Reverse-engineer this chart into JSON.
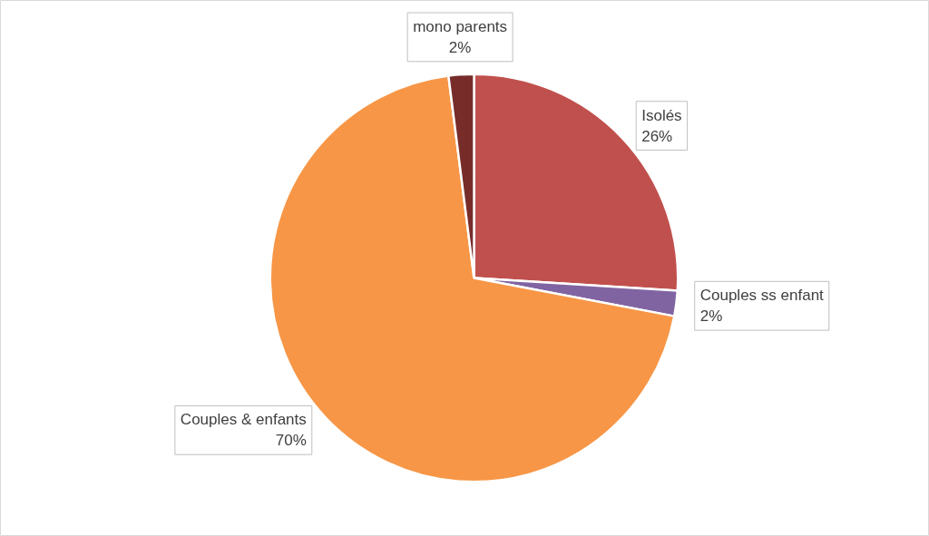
{
  "chart_data": {
    "type": "pie",
    "categories": [
      "Isolés",
      "Couples ss enfant",
      "Couples & enfants",
      "mono parents"
    ],
    "values": [
      26,
      2,
      70,
      2
    ],
    "colors": [
      "#c0504d",
      "#8064a2",
      "#f79646",
      "#772c2a"
    ],
    "value_labels": [
      "26%",
      "2%",
      "70%",
      "2%"
    ]
  }
}
